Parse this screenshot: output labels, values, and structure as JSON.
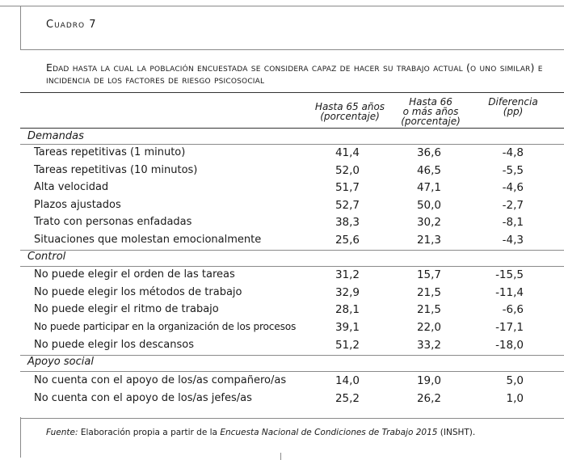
{
  "label": "Cuadro 7",
  "title": "Edad hasta la cual la población encuestada se considera capaz de hacer su trabajo actual (o uno similar) e incidencia de los factores de riesgo psicosocial",
  "columns": [
    {
      "line1": "Hasta 65 años",
      "line2": "(porcentaje)",
      "line3": ""
    },
    {
      "line1": "Hasta 66",
      "line2": "o más años",
      "line3": "(porcentaje)"
    },
    {
      "line1": "Diferencia",
      "line2": "(pp)",
      "line3": ""
    }
  ],
  "sections": [
    {
      "name": "Demandas",
      "rows": [
        {
          "label": "Tareas repetitivas (1 minuto)",
          "v1": "41,4",
          "v2": "36,6",
          "v3": "-4,8"
        },
        {
          "label": "Tareas repetitivas (10 minutos)",
          "v1": "52,0",
          "v2": "46,5",
          "v3": "-5,5"
        },
        {
          "label": "Alta velocidad",
          "v1": "51,7",
          "v2": "47,1",
          "v3": "-4,6"
        },
        {
          "label": "Plazos ajustados",
          "v1": "52,7",
          "v2": "50,0",
          "v3": "-2,7"
        },
        {
          "label": "Trato con personas enfadadas",
          "v1": "38,3",
          "v2": "30,2",
          "v3": "-8,1"
        },
        {
          "label": "Situaciones que molestan emocionalmente",
          "v1": "25,6",
          "v2": "21,3",
          "v3": "-4,3"
        }
      ]
    },
    {
      "name": "Control",
      "rows": [
        {
          "label": "No puede elegir el orden de las tareas",
          "v1": "31,2",
          "v2": "15,7",
          "v3": "-15,5"
        },
        {
          "label": "No puede elegir los métodos de trabajo",
          "v1": "32,9",
          "v2": "21,5",
          "v3": "-11,4"
        },
        {
          "label": "No puede elegir el ritmo de trabajo",
          "v1": "28,1",
          "v2": "21,5",
          "v3": "-6,6"
        },
        {
          "label": "No puede participar en la organización de los procesos",
          "v1": "39,1",
          "v2": "22,0",
          "v3": "-17,1"
        },
        {
          "label": "No puede elegir los descansos",
          "v1": "51,2",
          "v2": "33,2",
          "v3": "-18,0"
        }
      ]
    },
    {
      "name": "Apoyo social",
      "rows": [
        {
          "label": "No cuenta con el apoyo de los/as compañero/as",
          "v1": "14,0",
          "v2": "19,0",
          "v3": "5,0"
        },
        {
          "label": "No cuenta con el apoyo de los/as jefes/as",
          "v1": "25,2",
          "v2": "26,2",
          "v3": "1,0"
        }
      ]
    }
  ],
  "source": {
    "prefix": "Fuente:",
    "text1": " Elaboración propia a partir de la ",
    "italic": "Encuesta Nacional de Condiciones de Trabajo 2015",
    "text2": " (INSHT)."
  }
}
